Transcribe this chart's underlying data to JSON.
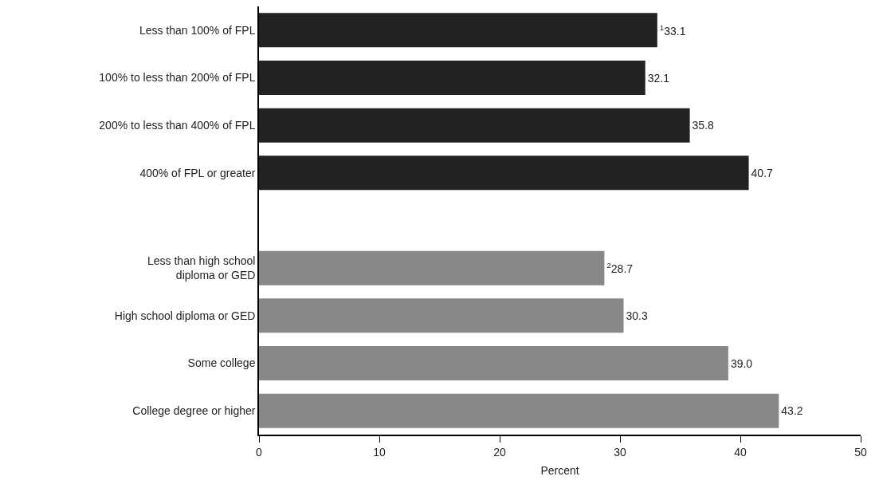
{
  "chart_data": {
    "type": "bar",
    "orientation": "horizontal",
    "xlabel": "Percent",
    "categories": [
      "Less than 100% of FPL",
      "100% to less than 200% of FPL",
      "200% to less than 400% of FPL",
      "400% of FPL or greater",
      null,
      "Less than high school diploma or GED",
      "High school diploma or GED",
      "Some college",
      "College degree or higher"
    ],
    "values": [
      33.1,
      32.1,
      35.8,
      40.7,
      null,
      28.7,
      30.3,
      39.0,
      43.2
    ],
    "value_labels": [
      "$^{1}$33.1",
      "32.1",
      "35.8",
      "40.7",
      null,
      "$^{2}$28.7",
      "30.3",
      "39.0",
      "43.2"
    ],
    "colors": [
      "#222222",
      "#222222",
      "#222222",
      "#222222",
      "#222222",
      "#878787",
      "#878787",
      "#878787",
      "#878787"
    ],
    "xlim": [
      0,
      50
    ],
    "xticks": [
      0,
      10,
      20,
      30,
      40,
      50
    ],
    "grid": false
  }
}
